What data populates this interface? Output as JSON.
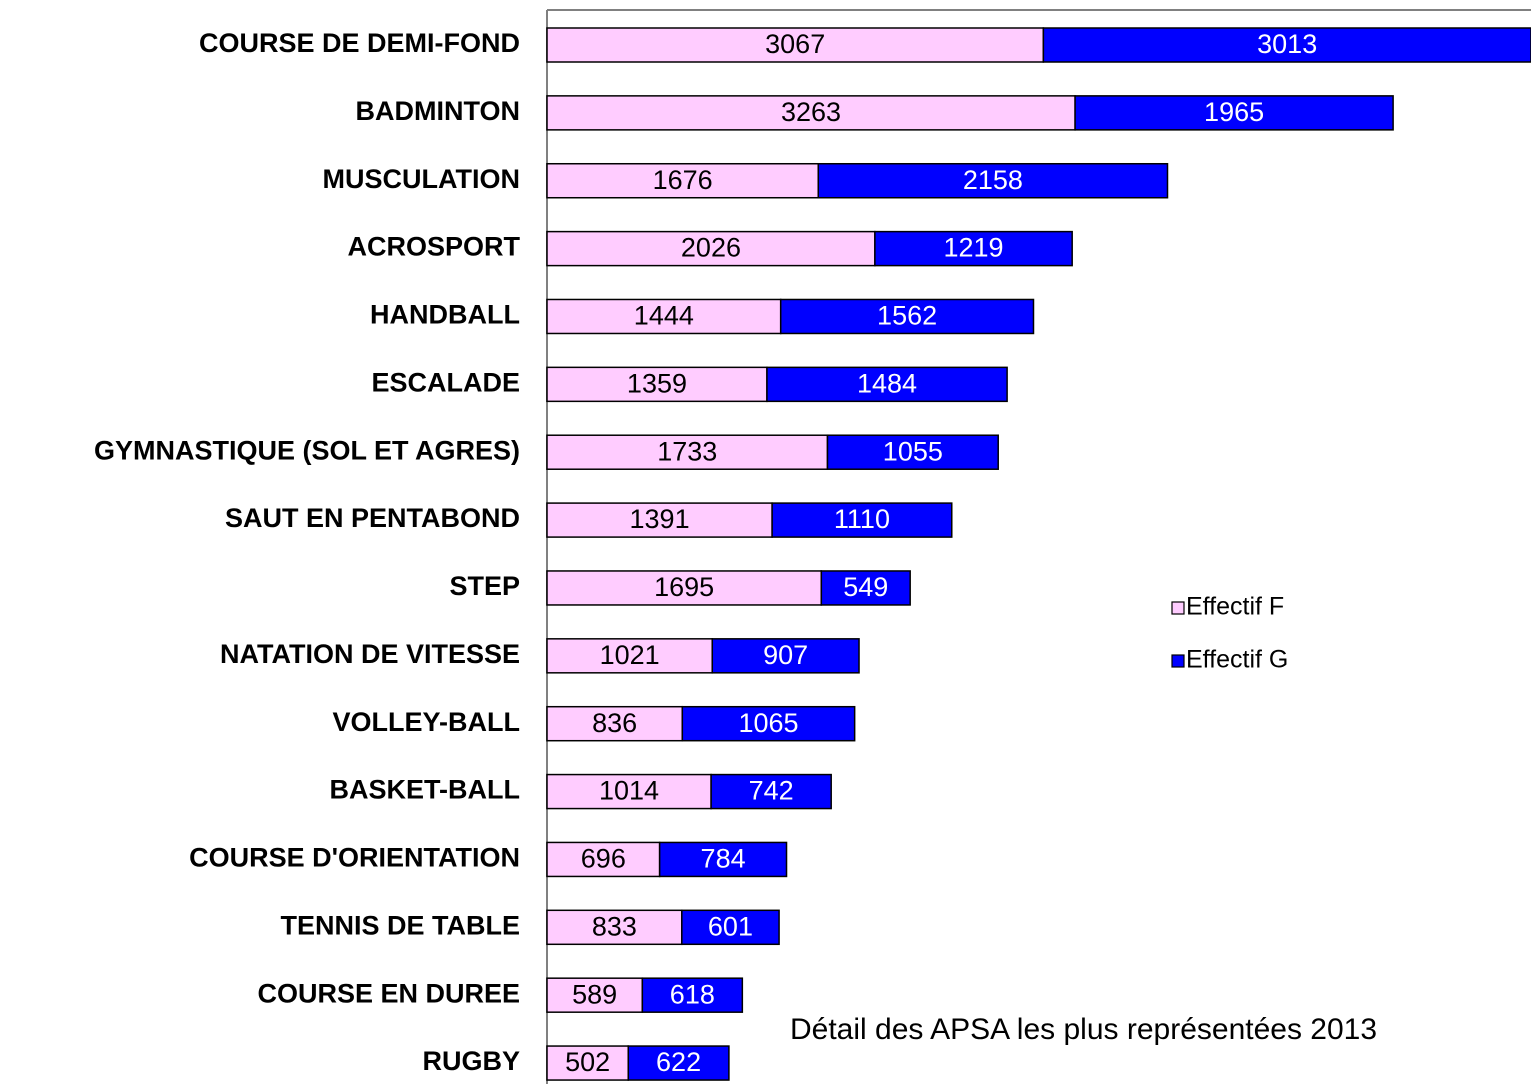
{
  "chart_data": {
    "type": "stacked-bar-horizontal",
    "title": "Détail des APSA les plus représentées 2013",
    "categories": [
      "COURSE DE DEMI-FOND",
      "BADMINTON",
      "MUSCULATION",
      "ACROSPORT",
      "HANDBALL",
      "ESCALADE",
      "GYMNASTIQUE (SOL ET AGRES)",
      "SAUT EN PENTABOND",
      "STEP",
      "NATATION DE VITESSE",
      "VOLLEY-BALL",
      "BASKET-BALL",
      "COURSE D'ORIENTATION",
      "TENNIS DE TABLE",
      "COURSE EN DUREE",
      "RUGBY"
    ],
    "series": [
      {
        "name": "Effectif F",
        "color": "#ffccff",
        "label_color": "#000000",
        "values": [
          3067,
          3263,
          1676,
          2026,
          1444,
          1359,
          1733,
          1391,
          1695,
          1021,
          836,
          1014,
          696,
          833,
          589,
          502
        ]
      },
      {
        "name": "Effectif G",
        "color": "#0000ff",
        "label_color": "#ffffff",
        "values": [
          3013,
          1965,
          2158,
          1219,
          1562,
          1484,
          1055,
          1110,
          549,
          907,
          1065,
          742,
          784,
          601,
          618,
          622
        ]
      }
    ],
    "xlim": [
      0,
      6080
    ],
    "legend": "right"
  }
}
